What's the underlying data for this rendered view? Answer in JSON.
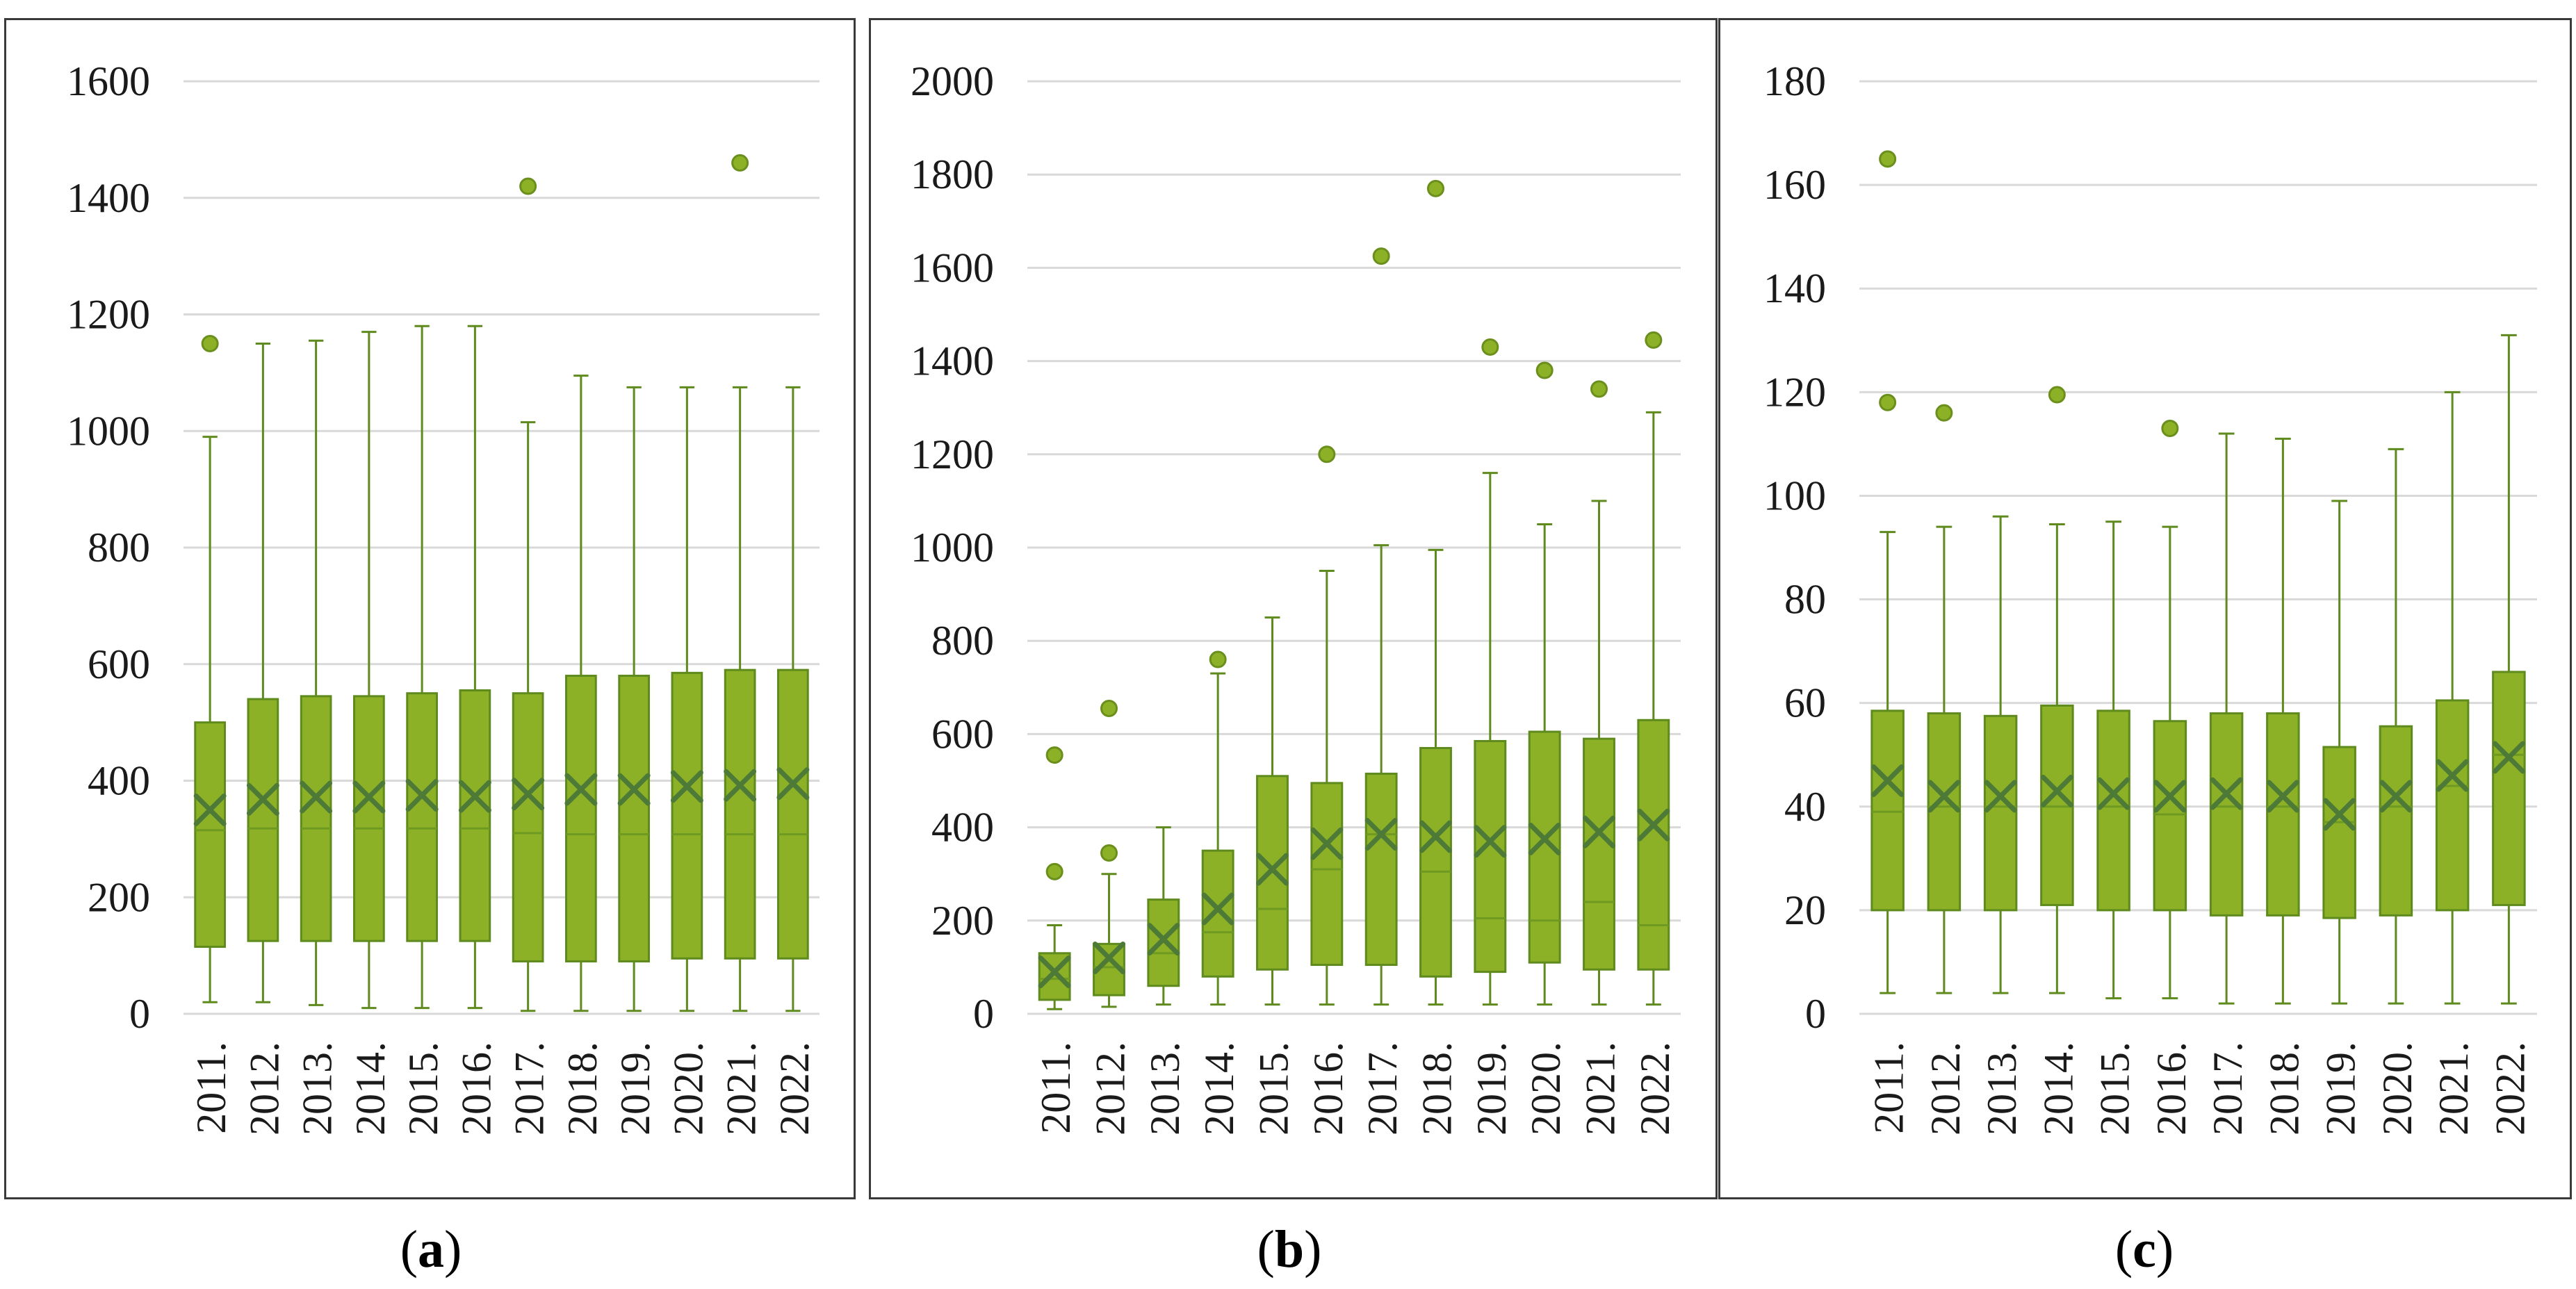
{
  "colors": {
    "box": "#8db126",
    "box_stroke": "#5e8a1e",
    "whisker": "#5e8a1e",
    "mean": "#4e7a38",
    "outlier": "#8db126",
    "grid": "#d9d9d9"
  },
  "chart_data": [
    {
      "type": "box",
      "caption_letter": "a",
      "ylim": [
        0,
        1600
      ],
      "yticks": [
        0,
        200,
        400,
        600,
        800,
        1000,
        1200,
        1400,
        1600
      ],
      "ytick_labels": [
        "0",
        "200",
        "400",
        "600",
        "800",
        "1000",
        "1200",
        "1400",
        "1600"
      ],
      "categories": [
        "2011.",
        "2012.",
        "2013.",
        "2014.",
        "2015.",
        "2016.",
        "2017.",
        "2018.",
        "2019.",
        "2020.",
        "2021.",
        "2022."
      ],
      "boxes": [
        {
          "min": 20,
          "q1": 115,
          "median": 315,
          "q3": 500,
          "max": 990,
          "mean": 350,
          "outliers": [
            1150
          ]
        },
        {
          "min": 20,
          "q1": 125,
          "median": 318,
          "q3": 540,
          "max": 1150,
          "mean": 368,
          "outliers": []
        },
        {
          "min": 15,
          "q1": 125,
          "median": 318,
          "q3": 545,
          "max": 1155,
          "mean": 372,
          "outliers": []
        },
        {
          "min": 10,
          "q1": 125,
          "median": 318,
          "q3": 545,
          "max": 1170,
          "mean": 372,
          "outliers": []
        },
        {
          "min": 10,
          "q1": 125,
          "median": 318,
          "q3": 550,
          "max": 1180,
          "mean": 375,
          "outliers": []
        },
        {
          "min": 10,
          "q1": 125,
          "median": 318,
          "q3": 555,
          "max": 1180,
          "mean": 373,
          "outliers": []
        },
        {
          "min": 5,
          "q1": 90,
          "median": 310,
          "q3": 550,
          "max": 1015,
          "mean": 377,
          "outliers": [
            1420
          ]
        },
        {
          "min": 5,
          "q1": 90,
          "median": 308,
          "q3": 580,
          "max": 1095,
          "mean": 385,
          "outliers": []
        },
        {
          "min": 5,
          "q1": 90,
          "median": 308,
          "q3": 580,
          "max": 1075,
          "mean": 385,
          "outliers": []
        },
        {
          "min": 5,
          "q1": 95,
          "median": 308,
          "q3": 585,
          "max": 1075,
          "mean": 390,
          "outliers": []
        },
        {
          "min": 5,
          "q1": 95,
          "median": 308,
          "q3": 590,
          "max": 1075,
          "mean": 392,
          "outliers": [
            1460
          ]
        },
        {
          "min": 5,
          "q1": 95,
          "median": 308,
          "q3": 590,
          "max": 1075,
          "mean": 395,
          "outliers": []
        }
      ]
    },
    {
      "type": "box",
      "caption_letter": "b",
      "ylim": [
        0,
        2000
      ],
      "yticks": [
        0,
        200,
        400,
        600,
        800,
        1000,
        1200,
        1400,
        1600,
        1800,
        2000
      ],
      "ytick_labels": [
        "0",
        "200",
        "400",
        "600",
        "800",
        "1000",
        "1200",
        "1400",
        "1600",
        "1800",
        "2000"
      ],
      "categories": [
        "2011.",
        "2012.",
        "2013.",
        "2014.",
        "2015.",
        "2016.",
        "2017.",
        "2018.",
        "2019.",
        "2020.",
        "2021.",
        "2022."
      ],
      "boxes": [
        {
          "min": 10,
          "q1": 30,
          "median": 75,
          "q3": 130,
          "max": 190,
          "mean": 90,
          "outliers": [
            305,
            555
          ]
        },
        {
          "min": 15,
          "q1": 40,
          "median": 100,
          "q3": 150,
          "max": 300,
          "mean": 120,
          "outliers": [
            345,
            655
          ]
        },
        {
          "min": 20,
          "q1": 60,
          "median": 130,
          "q3": 245,
          "max": 400,
          "mean": 160,
          "outliers": []
        },
        {
          "min": 20,
          "q1": 80,
          "median": 175,
          "q3": 350,
          "max": 730,
          "mean": 225,
          "outliers": [
            760
          ]
        },
        {
          "min": 20,
          "q1": 95,
          "median": 225,
          "q3": 510,
          "max": 850,
          "mean": 310,
          "outliers": []
        },
        {
          "min": 20,
          "q1": 105,
          "median": 310,
          "q3": 495,
          "max": 950,
          "mean": 365,
          "outliers": [
            1200
          ]
        },
        {
          "min": 20,
          "q1": 105,
          "median": 385,
          "q3": 515,
          "max": 1005,
          "mean": 385,
          "outliers": [
            1625
          ]
        },
        {
          "min": 20,
          "q1": 80,
          "median": 305,
          "q3": 570,
          "max": 995,
          "mean": 380,
          "outliers": [
            1770
          ]
        },
        {
          "min": 20,
          "q1": 90,
          "median": 205,
          "q3": 585,
          "max": 1160,
          "mean": 370,
          "outliers": [
            1430
          ]
        },
        {
          "min": 20,
          "q1": 110,
          "median": 200,
          "q3": 605,
          "max": 1050,
          "mean": 375,
          "outliers": [
            1380
          ]
        },
        {
          "min": 20,
          "q1": 95,
          "median": 240,
          "q3": 590,
          "max": 1100,
          "mean": 390,
          "outliers": [
            1340
          ]
        },
        {
          "min": 20,
          "q1": 95,
          "median": 190,
          "q3": 630,
          "max": 1290,
          "mean": 405,
          "outliers": [
            1445
          ]
        }
      ]
    },
    {
      "type": "box",
      "caption_letter": "c",
      "ylim": [
        0,
        180
      ],
      "yticks": [
        0,
        20,
        40,
        60,
        80,
        100,
        120,
        140,
        160,
        180
      ],
      "ytick_labels": [
        "0",
        "20",
        "40",
        "60",
        "80",
        "100",
        "120",
        "140",
        "160",
        "180"
      ],
      "categories": [
        "2011.",
        "2012.",
        "2013.",
        "2014.",
        "2015.",
        "2016.",
        "2017.",
        "2018.",
        "2019.",
        "2020.",
        "2021.",
        "2022."
      ],
      "boxes": [
        {
          "min": 4,
          "q1": 20,
          "median": 39,
          "q3": 58.5,
          "max": 93,
          "mean": 45,
          "outliers": [
            118,
            165
          ]
        },
        {
          "min": 4,
          "q1": 20,
          "median": 40,
          "q3": 58,
          "max": 94,
          "mean": 42,
          "outliers": [
            116
          ]
        },
        {
          "min": 4,
          "q1": 20,
          "median": 40,
          "q3": 57.5,
          "max": 96,
          "mean": 42,
          "outliers": []
        },
        {
          "min": 4,
          "q1": 21,
          "median": 40,
          "q3": 59.5,
          "max": 94.5,
          "mean": 43,
          "outliers": [
            119.5
          ]
        },
        {
          "min": 3,
          "q1": 20,
          "median": 40,
          "q3": 58.5,
          "max": 95,
          "mean": 42.5,
          "outliers": []
        },
        {
          "min": 3,
          "q1": 20,
          "median": 38.5,
          "q3": 56.5,
          "max": 94,
          "mean": 42,
          "outliers": [
            113
          ]
        },
        {
          "min": 2,
          "q1": 19,
          "median": 40,
          "q3": 58,
          "max": 112,
          "mean": 42.5,
          "outliers": []
        },
        {
          "min": 2,
          "q1": 19,
          "median": 40,
          "q3": 58,
          "max": 111,
          "mean": 42,
          "outliers": []
        },
        {
          "min": 2,
          "q1": 18.5,
          "median": 37,
          "q3": 51.5,
          "max": 99,
          "mean": 38.5,
          "outliers": []
        },
        {
          "min": 2,
          "q1": 19,
          "median": 40,
          "q3": 55.5,
          "max": 109,
          "mean": 42,
          "outliers": []
        },
        {
          "min": 2,
          "q1": 20,
          "median": 44,
          "q3": 60.5,
          "max": 120,
          "mean": 46,
          "outliers": []
        },
        {
          "min": 2,
          "q1": 21,
          "median": 50,
          "q3": 66,
          "max": 131,
          "mean": 49.5,
          "outliers": []
        }
      ]
    }
  ]
}
